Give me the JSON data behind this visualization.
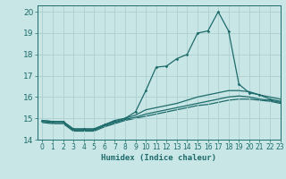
{
  "xlabel": "Humidex (Indice chaleur)",
  "xlim": [
    -0.5,
    23
  ],
  "ylim": [
    14,
    20.3
  ],
  "xticks": [
    0,
    1,
    2,
    3,
    4,
    5,
    6,
    7,
    8,
    9,
    10,
    11,
    12,
    13,
    14,
    15,
    16,
    17,
    18,
    19,
    20,
    21,
    22,
    23
  ],
  "yticks": [
    14,
    15,
    16,
    17,
    18,
    19,
    20
  ],
  "background_color": "#c8e6e6",
  "grid_color": "#aed0d0",
  "line_color": "#1e6b6b",
  "series": {
    "peaked": {
      "x": [
        0,
        1,
        2,
        3,
        4,
        5,
        6,
        7,
        8,
        9,
        10,
        11,
        12,
        13,
        14,
        15,
        16,
        17,
        18,
        19,
        20,
        21,
        22,
        23
      ],
      "y": [
        14.9,
        14.85,
        14.85,
        14.5,
        14.5,
        14.5,
        14.7,
        14.9,
        15.0,
        15.3,
        16.3,
        17.4,
        17.45,
        17.8,
        18.0,
        19.0,
        19.1,
        20.0,
        19.1,
        16.6,
        16.2,
        16.1,
        15.9,
        15.8
      ]
    },
    "smooth1": {
      "x": [
        0,
        1,
        2,
        3,
        4,
        5,
        6,
        7,
        8,
        9,
        10,
        11,
        12,
        13,
        14,
        15,
        16,
        17,
        18,
        19,
        20,
        21,
        22,
        23
      ],
      "y": [
        14.9,
        14.85,
        14.85,
        14.5,
        14.5,
        14.5,
        14.7,
        14.85,
        15.0,
        15.15,
        15.4,
        15.5,
        15.6,
        15.7,
        15.85,
        16.0,
        16.1,
        16.2,
        16.3,
        16.3,
        16.25,
        16.1,
        16.0,
        15.9
      ]
    },
    "smooth2": {
      "x": [
        0,
        1,
        2,
        3,
        4,
        5,
        6,
        7,
        8,
        9,
        10,
        11,
        12,
        13,
        14,
        15,
        16,
        17,
        18,
        19,
        20,
        21,
        22,
        23
      ],
      "y": [
        14.85,
        14.8,
        14.8,
        14.45,
        14.45,
        14.45,
        14.65,
        14.8,
        14.95,
        15.05,
        15.2,
        15.3,
        15.4,
        15.5,
        15.6,
        15.7,
        15.8,
        15.9,
        16.0,
        16.05,
        16.0,
        15.9,
        15.85,
        15.75
      ]
    },
    "smooth3": {
      "x": [
        0,
        1,
        2,
        3,
        4,
        5,
        6,
        7,
        8,
        9,
        10,
        11,
        12,
        13,
        14,
        15,
        16,
        17,
        18,
        19,
        20,
        21,
        22,
        23
      ],
      "y": [
        14.8,
        14.75,
        14.75,
        14.4,
        14.4,
        14.4,
        14.6,
        14.75,
        14.9,
        15.0,
        15.1,
        15.2,
        15.3,
        15.4,
        15.5,
        15.6,
        15.65,
        15.75,
        15.85,
        15.9,
        15.9,
        15.85,
        15.8,
        15.7
      ]
    }
  }
}
